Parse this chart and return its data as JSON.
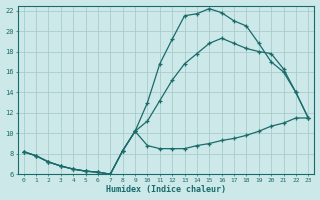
{
  "xlabel": "Humidex (Indice chaleur)",
  "bg_color": "#cce8e8",
  "grid_color": "#aacccc",
  "line_color": "#1a6b6b",
  "xlim": [
    -0.5,
    23.5
  ],
  "ylim": [
    6,
    22.5
  ],
  "xticks": [
    0,
    1,
    2,
    3,
    4,
    5,
    6,
    7,
    8,
    9,
    10,
    11,
    12,
    13,
    14,
    15,
    16,
    17,
    18,
    19,
    20,
    21,
    22,
    23
  ],
  "yticks": [
    6,
    8,
    10,
    12,
    14,
    16,
    18,
    20,
    22
  ],
  "line1_x": [
    0,
    1,
    2,
    3,
    4,
    5,
    6,
    7,
    8,
    9,
    10,
    11,
    12,
    13,
    14,
    15,
    16,
    17,
    18,
    19,
    20,
    21,
    22,
    23
  ],
  "line1_y": [
    8.2,
    7.8,
    7.2,
    6.8,
    6.5,
    6.3,
    6.2,
    6.0,
    8.3,
    10.2,
    13.0,
    16.8,
    19.2,
    21.5,
    21.7,
    22.2,
    21.8,
    21.0,
    20.5,
    18.8,
    17.0,
    16.0,
    14.0,
    11.5
  ],
  "line2_x": [
    0,
    1,
    2,
    3,
    4,
    5,
    6,
    7,
    8,
    9,
    10,
    11,
    12,
    13,
    14,
    15,
    16,
    17,
    18,
    19,
    20,
    21,
    22,
    23
  ],
  "line2_y": [
    8.2,
    7.8,
    7.2,
    6.8,
    6.5,
    6.3,
    6.2,
    6.0,
    8.3,
    10.2,
    8.8,
    8.5,
    8.5,
    8.5,
    8.8,
    9.0,
    9.3,
    9.5,
    9.8,
    10.2,
    10.7,
    11.0,
    11.5,
    11.5
  ],
  "line3_x": [
    0,
    1,
    2,
    3,
    4,
    5,
    6,
    7,
    8,
    9,
    10,
    11,
    12,
    13,
    14,
    15,
    16,
    17,
    18,
    19,
    20,
    21,
    22,
    23
  ],
  "line3_y": [
    8.2,
    7.8,
    7.2,
    6.8,
    6.5,
    6.3,
    6.2,
    6.0,
    8.3,
    10.2,
    11.2,
    13.2,
    15.2,
    16.8,
    17.8,
    18.8,
    19.3,
    18.8,
    18.3,
    18.0,
    17.8,
    16.3,
    14.0,
    11.5
  ]
}
